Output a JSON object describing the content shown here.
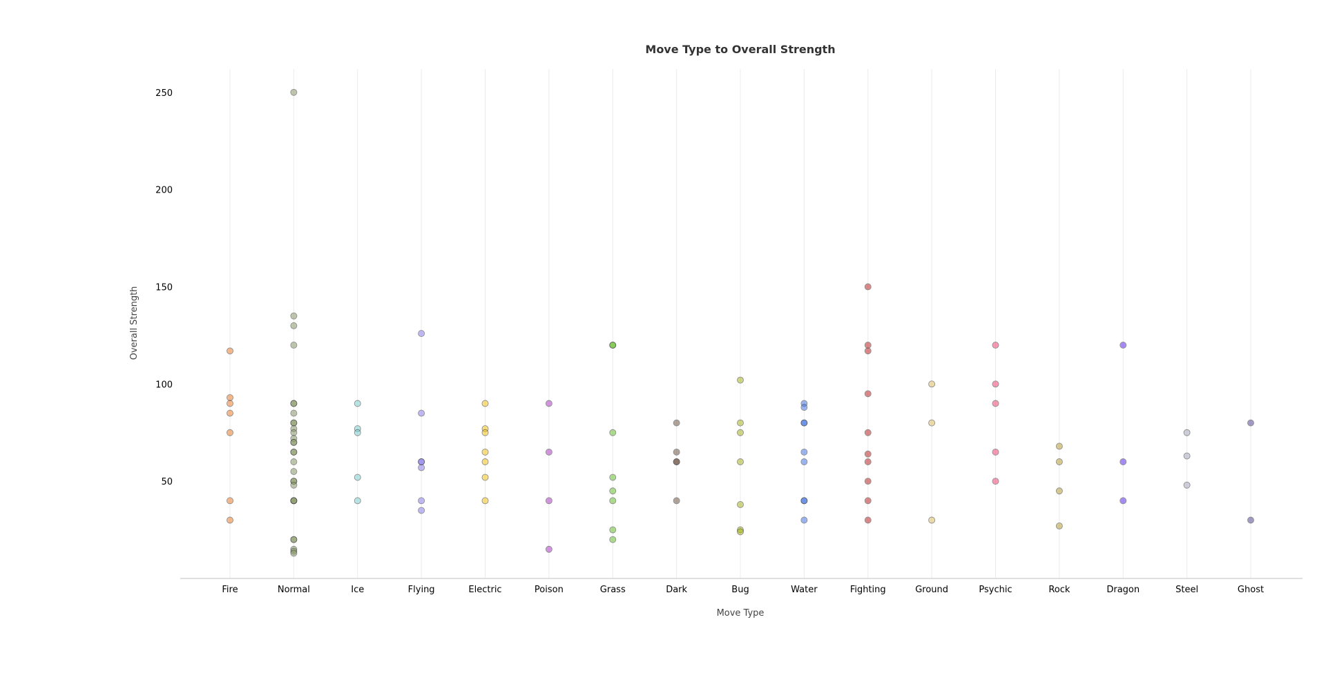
{
  "chart_data": {
    "type": "scatter",
    "title": "Move Type to Overall Strength",
    "xlabel": "Move Type",
    "ylabel": "Overall Strength",
    "ylim": [
      0,
      262
    ],
    "yticks": [
      50,
      100,
      150,
      200,
      250
    ],
    "grid": "vertical",
    "legend": "none",
    "categories": [
      "Fire",
      "Normal",
      "Ice",
      "Flying",
      "Electric",
      "Poison",
      "Grass",
      "Dark",
      "Bug",
      "Water",
      "Fighting",
      "Ground",
      "Psychic",
      "Rock",
      "Dragon",
      "Steel",
      "Ghost"
    ],
    "colors": {
      "Fire": "#ee8130",
      "Normal": "#8a9a6b",
      "Ice": "#7fd0d0",
      "Flying": "#8e80f0",
      "Electric": "#f5c518",
      "Poison": "#b040c8",
      "Grass": "#6cc034",
      "Dark": "#705848",
      "Bug": "#a8b820",
      "Water": "#4a7ae8",
      "Fighting": "#c02828",
      "Ground": "#e0c068",
      "Psychic": "#f04878",
      "Rock": "#b8a038",
      "Dragon": "#6030f0",
      "Steel": "#a8a8c0",
      "Ghost": "#5a4898"
    },
    "points": {
      "Fire": [
        117,
        93,
        90,
        85,
        75,
        40,
        30
      ],
      "Normal": [
        250,
        135,
        130,
        120,
        90,
        90,
        85,
        80,
        80,
        77,
        75,
        72,
        70,
        70,
        65,
        65,
        60,
        55,
        50,
        50,
        48,
        40,
        40,
        40,
        20,
        20,
        15,
        14,
        13
      ],
      "Ice": [
        90,
        77,
        75,
        52,
        40
      ],
      "Flying": [
        126,
        85,
        60,
        60,
        57,
        40,
        35
      ],
      "Electric": [
        90,
        77,
        75,
        65,
        60,
        52,
        40
      ],
      "Poison": [
        90,
        65,
        40,
        15
      ],
      "Grass": [
        120,
        120,
        75,
        52,
        45,
        40,
        25,
        20
      ],
      "Dark": [
        80,
        65,
        60,
        60,
        40
      ],
      "Bug": [
        102,
        80,
        75,
        60,
        38,
        25,
        24
      ],
      "Water": [
        90,
        88,
        80,
        80,
        65,
        60,
        40,
        40,
        30
      ],
      "Fighting": [
        150,
        120,
        117,
        95,
        75,
        64,
        60,
        50,
        40,
        30
      ],
      "Ground": [
        100,
        80,
        30
      ],
      "Psychic": [
        120,
        100,
        90,
        65,
        50
      ],
      "Rock": [
        68,
        60,
        45,
        27
      ],
      "Dragon": [
        120,
        60,
        40
      ],
      "Steel": [
        75,
        63,
        48
      ],
      "Ghost": [
        80,
        30
      ]
    }
  }
}
